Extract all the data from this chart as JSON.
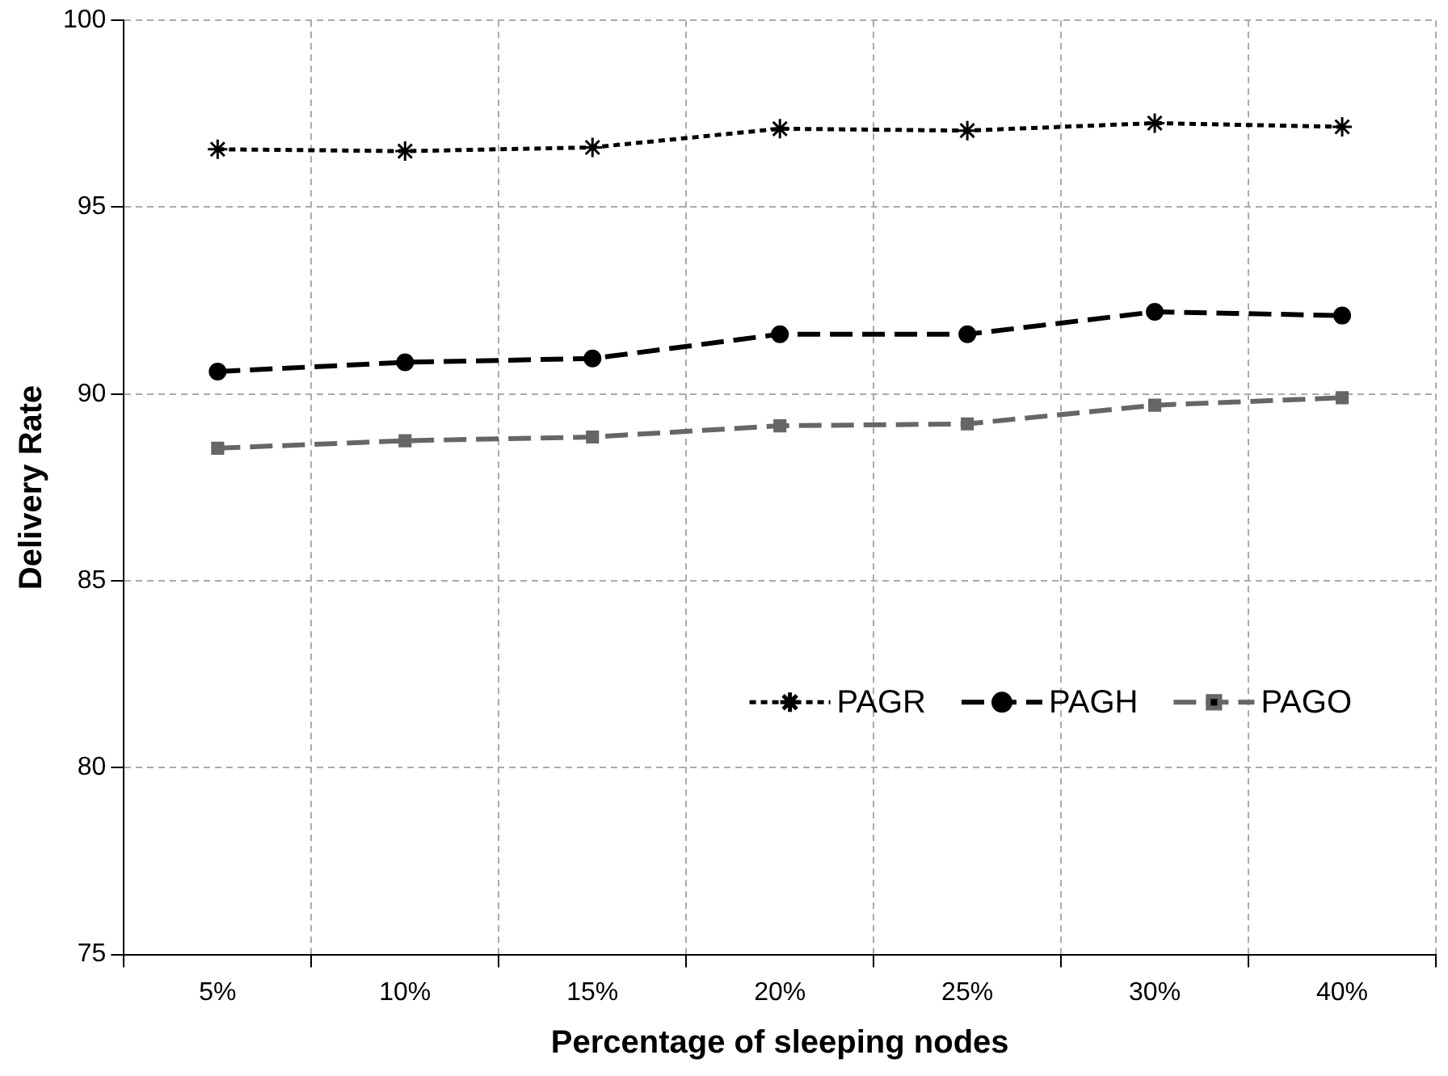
{
  "chart_data": {
    "type": "line",
    "xlabel": "Percentage of sleeping nodes",
    "ylabel": "Delivery Rate",
    "categories": [
      "5%",
      "10%",
      "15%",
      "20%",
      "25%",
      "30%",
      "40%"
    ],
    "series": [
      {
        "name": "PAGR",
        "color": "#000000",
        "marker": "cross",
        "line_style": "dotted",
        "values": [
          96.55,
          96.5,
          96.6,
          97.1,
          97.05,
          97.25,
          97.15
        ]
      },
      {
        "name": "PAGH",
        "color": "#000000",
        "marker": "circle",
        "line_style": "dashed",
        "values": [
          90.6,
          90.85,
          90.95,
          91.6,
          91.6,
          92.2,
          92.1
        ]
      },
      {
        "name": "PAGO",
        "color": "#666666",
        "marker": "square",
        "line_style": "dashed",
        "values": [
          88.55,
          88.75,
          88.85,
          89.15,
          89.2,
          89.7,
          89.9
        ]
      }
    ],
    "ylim": [
      75,
      100
    ],
    "yticks": [
      75,
      80,
      85,
      90,
      95,
      100
    ],
    "grid": true,
    "legend": "right"
  }
}
